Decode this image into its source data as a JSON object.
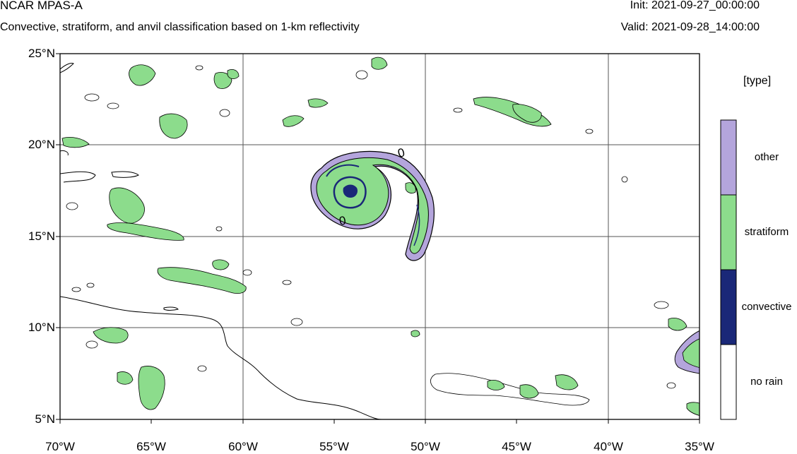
{
  "header": {
    "title": "NCAR MPAS-A",
    "subtitle": "Convective, stratiform, and anvil classification based on 1-km reflectivity",
    "init": "Init: 2021-09-27_00:00:00",
    "valid": "Valid: 2021-09-28_14:00:00"
  },
  "map": {
    "lat_labels": [
      "25°N",
      "20°N",
      "15°N",
      "10°N",
      "5°N"
    ],
    "lon_labels": [
      "70°W",
      "65°W",
      "60°W",
      "55°W",
      "50°W",
      "45°W",
      "40°W",
      "35°W"
    ],
    "extent": {
      "lon": [
        -70,
        -35
      ],
      "lat": [
        5,
        25
      ]
    },
    "gridlines": true,
    "features": [
      "coastline",
      "reflectivity classification"
    ],
    "contour_labels": [
      "0",
      "0"
    ]
  },
  "legend": {
    "title": "[type]",
    "items": [
      {
        "label": "other",
        "color": "#b4a5dc"
      },
      {
        "label": "stratiform",
        "color": "#8cdc8c"
      },
      {
        "label": "convective",
        "color": "#1a2878"
      },
      {
        "label": "no rain",
        "color": "#ffffff"
      }
    ]
  },
  "colors": {
    "other": "#b4a5dc",
    "stratiform": "#8cdc8c",
    "convective": "#1a2878",
    "grid": "#555555",
    "coast": "#000000"
  }
}
